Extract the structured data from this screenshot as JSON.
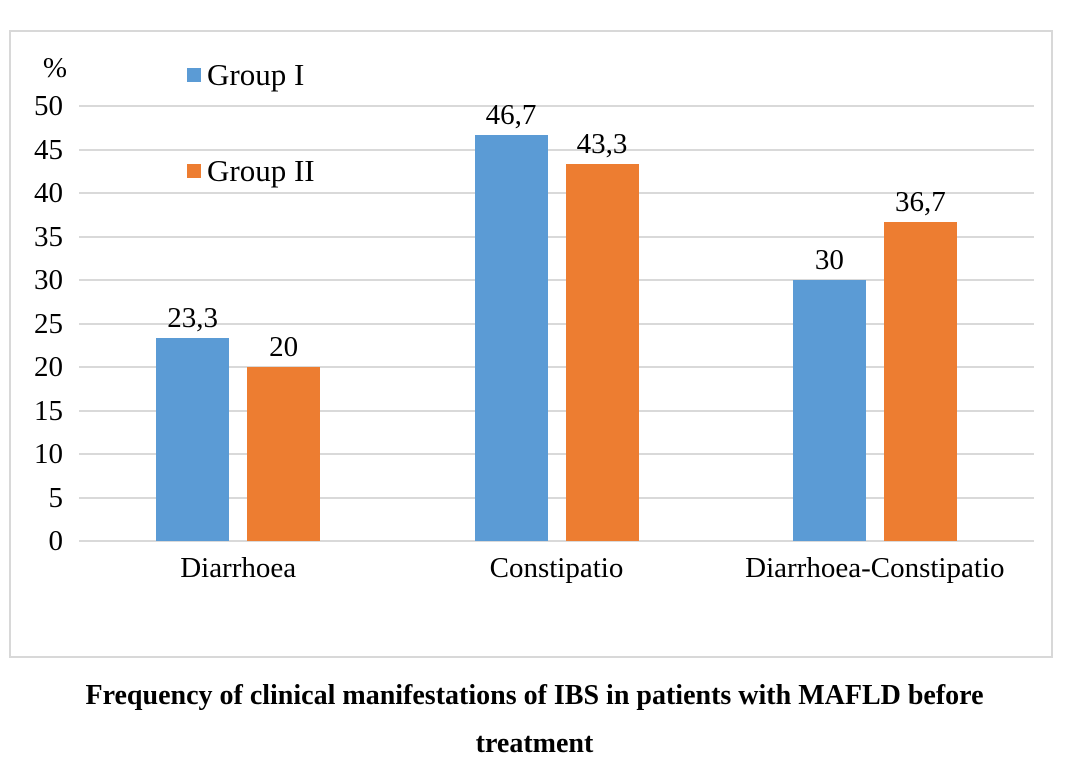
{
  "chart_data": {
    "type": "bar",
    "title": "Frequency of clinical manifestations of IBS in patients with MAFLD before treatment",
    "ylabel": "%",
    "xlabel": "",
    "categories": [
      "Diarrhoea",
      "Constipatio",
      "Diarrhoea-Constipatio"
    ],
    "series": [
      {
        "name": "Group I",
        "color": "#5B9BD5",
        "values": [
          23.3,
          46.7,
          30
        ],
        "labels": [
          "23,3",
          "46,7",
          "30"
        ]
      },
      {
        "name": "Group II",
        "color": "#ED7D31",
        "values": [
          20,
          43.3,
          36.7
        ],
        "labels": [
          "20",
          "43,3",
          "36,7"
        ]
      }
    ],
    "ylim": [
      0,
      50
    ],
    "ytick_step": 5,
    "yticks": [
      "0",
      "5",
      "10",
      "15",
      "20",
      "25",
      "30",
      "35",
      "40",
      "45",
      "50"
    ],
    "grid": true,
    "gridline_color": "#D9D9D9",
    "frame_border_color": "#D8D8D8",
    "legend_position": "upper-left-inside",
    "decimal_separator": ","
  }
}
